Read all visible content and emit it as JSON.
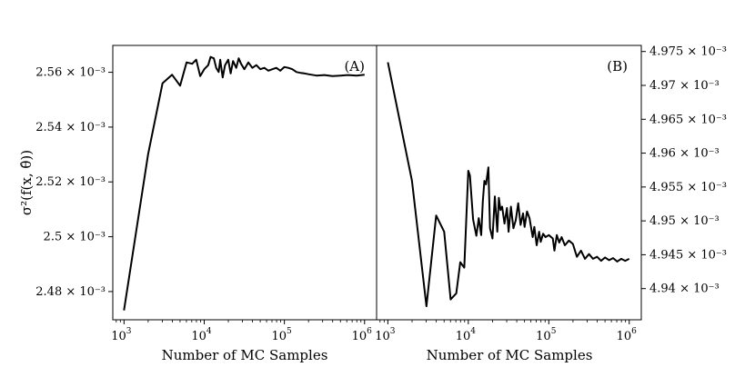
{
  "chart_data": [
    {
      "type": "line",
      "panel_label": "(A)",
      "xscale": "log",
      "xlim_exp": [
        2.86,
        6.15
      ],
      "x_ticks": [
        {
          "base": "10",
          "exp": "3",
          "value": 1000
        },
        {
          "base": "10",
          "exp": "4",
          "value": 10000
        },
        {
          "base": "10",
          "exp": "5",
          "value": 100000
        },
        {
          "base": "10",
          "exp": "6",
          "value": 1000000
        }
      ],
      "xlabel": "Number of MC Samples",
      "ylabel": "σ²(f(x, θ̂))",
      "ylim": [
        2.4697,
        2.5698
      ],
      "y_tick_labels": [
        "2.48 × 10⁻³",
        "2.5 × 10⁻³",
        "2.52 × 10⁻³",
        "2.54 × 10⁻³",
        "2.56 × 10⁻³"
      ],
      "y_tick_values": [
        2.48,
        2.5,
        2.52,
        2.54,
        2.56
      ],
      "y_unit": "10⁻³",
      "series": [
        {
          "name": "variance",
          "x_log10": [
            3.0,
            3.3,
            3.48,
            3.6,
            3.7,
            3.78,
            3.85,
            3.9,
            3.95,
            4.0,
            4.05,
            4.08,
            4.12,
            4.15,
            4.18,
            4.2,
            4.23,
            4.26,
            4.3,
            4.33,
            4.36,
            4.4,
            4.43,
            4.46,
            4.5,
            4.55,
            4.6,
            4.65,
            4.7,
            4.75,
            4.8,
            4.85,
            4.9,
            4.95,
            5.0,
            5.05,
            5.1,
            5.15,
            5.2,
            5.25,
            5.3,
            5.4,
            5.5,
            5.6,
            5.7,
            5.8,
            5.9,
            6.0
          ],
          "y": [
            2.4731,
            2.5301,
            2.556,
            2.5591,
            2.5551,
            2.5636,
            2.5631,
            2.5646,
            2.5586,
            2.5611,
            2.5626,
            2.5656,
            2.5651,
            2.5616,
            2.5601,
            2.5646,
            2.5581,
            2.5626,
            2.5646,
            2.5596,
            2.5641,
            2.5616,
            2.5651,
            2.5631,
            2.5611,
            2.5636,
            2.5616,
            2.5626,
            2.5611,
            2.5616,
            2.5606,
            2.5611,
            2.5616,
            2.5606,
            2.5619,
            2.5616,
            2.5611,
            2.5601,
            2.5598,
            2.5596,
            2.5593,
            2.5588,
            2.559,
            2.5586,
            2.5588,
            2.559,
            2.5588,
            2.5591
          ]
        }
      ]
    },
    {
      "type": "line",
      "panel_label": "(B)",
      "xscale": "log",
      "xlim_exp": [
        2.86,
        6.15
      ],
      "x_ticks": [
        {
          "base": "10",
          "exp": "3",
          "value": 1000
        },
        {
          "base": "10",
          "exp": "4",
          "value": 10000
        },
        {
          "base": "10",
          "exp": "5",
          "value": 100000
        },
        {
          "base": "10",
          "exp": "6",
          "value": 1000000
        }
      ],
      "xlabel": "Number of MC Samples",
      "ylim": [
        4.9354,
        4.9759
      ],
      "y_axis_side": "right",
      "y_tick_labels": [
        "4.94 × 10⁻³",
        "4.945 × 10⁻³",
        "4.95 × 10⁻³",
        "4.955 × 10⁻³",
        "4.96 × 10⁻³",
        "4.965 × 10⁻³",
        "4.97 × 10⁻³",
        "4.975 × 10⁻³"
      ],
      "y_tick_values": [
        4.94,
        4.945,
        4.95,
        4.955,
        4.96,
        4.965,
        4.97,
        4.975
      ],
      "y_unit": "10⁻³",
      "series": [
        {
          "name": "variance",
          "x_log10": [
            3.0,
            3.3,
            3.48,
            3.6,
            3.7,
            3.78,
            3.85,
            3.9,
            3.95,
            4.0,
            4.02,
            4.06,
            4.1,
            4.13,
            4.16,
            4.18,
            4.2,
            4.22,
            4.25,
            4.27,
            4.3,
            4.33,
            4.36,
            4.38,
            4.4,
            4.42,
            4.45,
            4.48,
            4.5,
            4.53,
            4.56,
            4.59,
            4.62,
            4.65,
            4.68,
            4.7,
            4.73,
            4.76,
            4.8,
            4.82,
            4.85,
            4.88,
            4.9,
            4.93,
            4.96,
            5.0,
            5.05,
            5.07,
            5.1,
            5.13,
            5.16,
            5.2,
            5.25,
            5.3,
            5.35,
            5.4,
            5.45,
            5.5,
            5.55,
            5.6,
            5.65,
            5.7,
            5.75,
            5.8,
            5.85,
            5.9,
            5.95,
            6.0
          ],
          "y": [
            4.9734,
            4.9559,
            4.9374,
            4.9508,
            4.9484,
            4.9384,
            4.9393,
            4.9439,
            4.9431,
            4.9574,
            4.9567,
            4.9502,
            4.9478,
            4.9504,
            4.9479,
            4.9529,
            4.9559,
            4.9554,
            4.9579,
            4.9489,
            4.9474,
            4.9536,
            4.9484,
            4.9534,
            4.9516,
            4.9521,
            4.9496,
            4.9519,
            4.9484,
            4.9521,
            4.9489,
            4.9501,
            4.9526,
            4.9494,
            4.9511,
            4.9491,
            4.9514,
            4.9504,
            4.9476,
            4.9491,
            4.9464,
            4.9484,
            4.9469,
            4.9481,
            4.9476,
            4.9479,
            4.9474,
            4.9456,
            4.9479,
            4.9468,
            4.9476,
            4.9464,
            4.9471,
            4.9466,
            4.9447,
            4.9456,
            4.9444,
            4.9451,
            4.9444,
            4.9447,
            4.9441,
            4.9446,
            4.9442,
            4.9445,
            4.944,
            4.9444,
            4.9441,
            4.9444
          ]
        }
      ]
    }
  ]
}
